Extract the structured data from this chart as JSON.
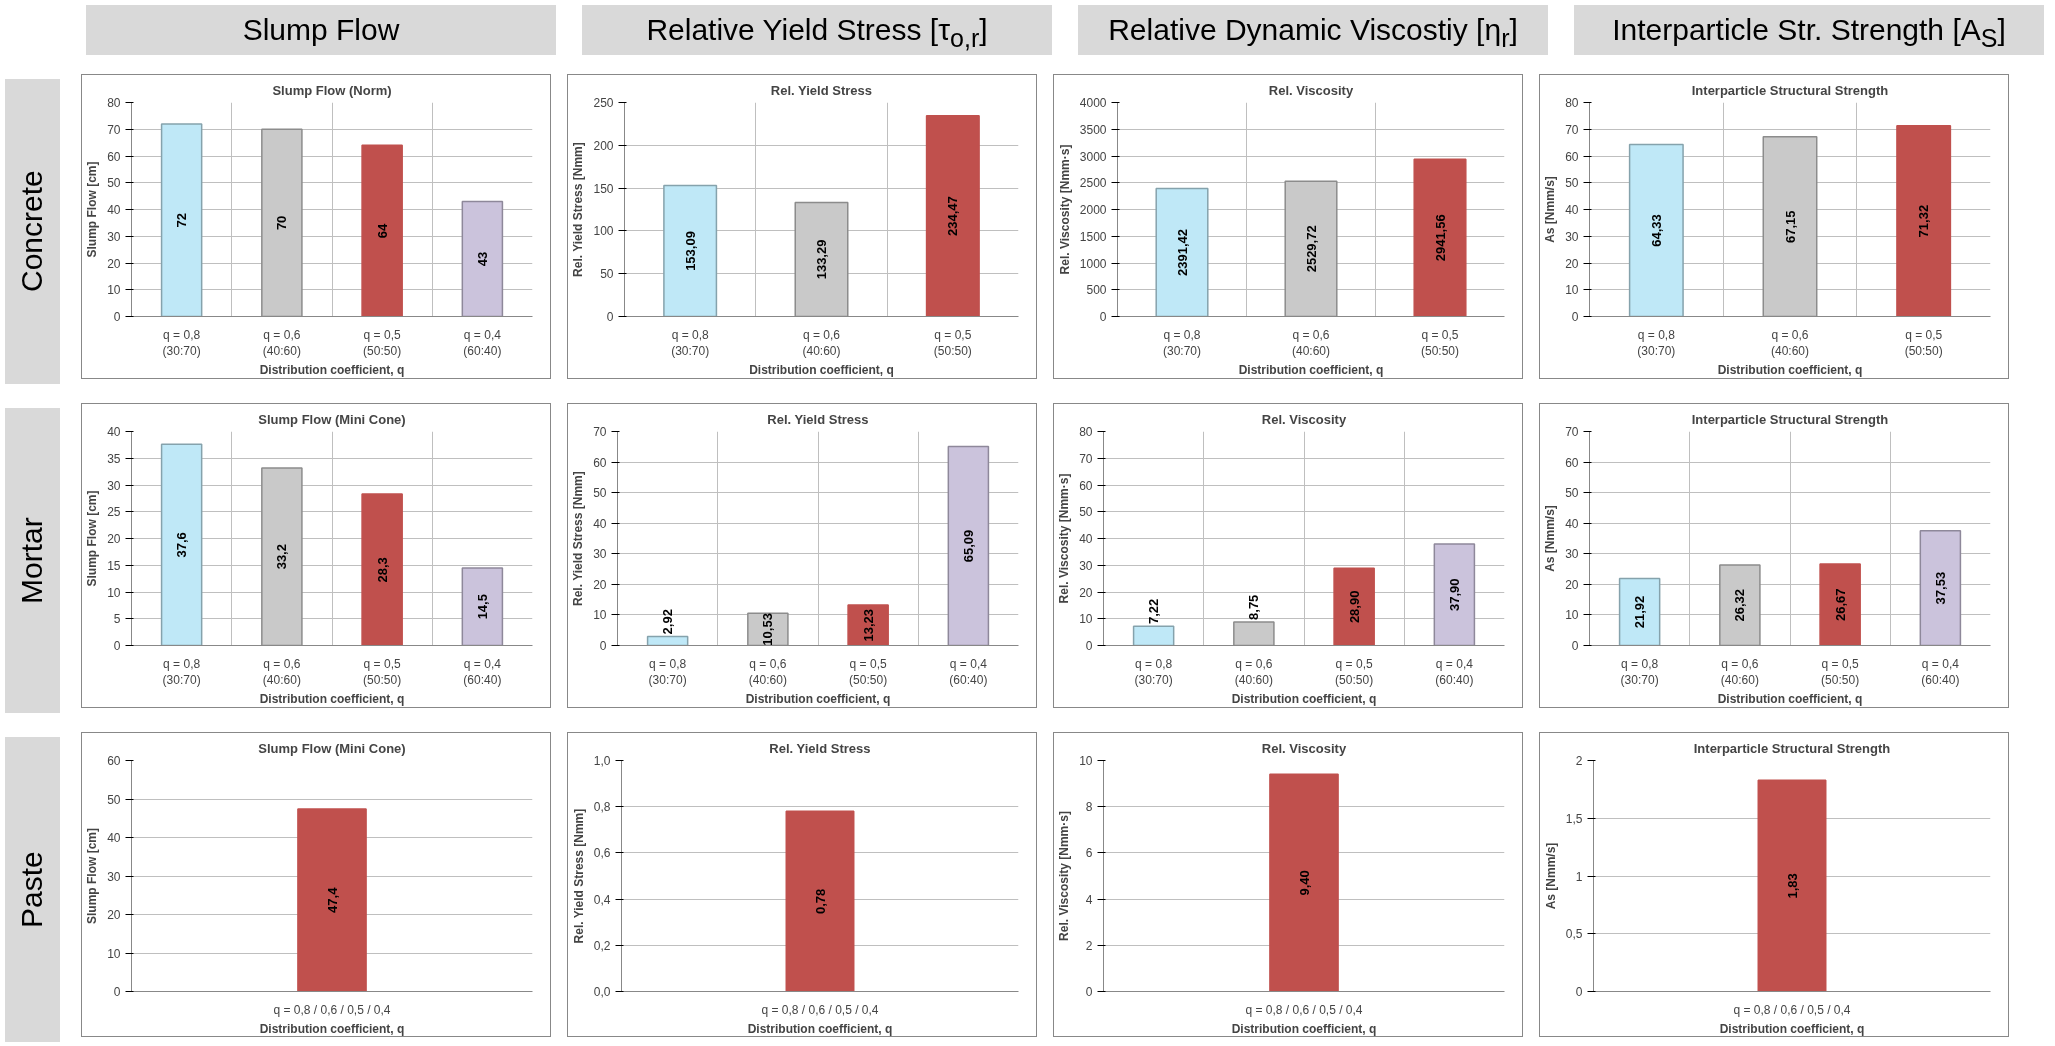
{
  "chart_data": [
    {
      "type": "other",
      "title": "Slump Flow"
    },
    {
      "type": "other",
      "title": "Relative Yield Stress [τ$_{o,r}$]"
    },
    {
      "type": "other",
      "title": "Relative Dynamic Viscostiy [η$_{r}$]"
    },
    {
      "type": "other",
      "title": "Interparticle Str. Strength [A$_{S}$]"
    },
    {
      "type": "other",
      "title": "Concrete"
    },
    {
      "type": "bar",
      "title": "Slump Flow (Norm)",
      "xlabel": "Distribution coefficient, q",
      "ylabel": "Slump Flow [cm]",
      "categories": [
        "q = 0,8\n(30:70)",
        "q = 0,6\n(40:60)",
        "q = 0,5\n(50:50)",
        "q = 0,4\n(60:40)"
      ],
      "values": [
        72,
        70,
        64,
        43
      ],
      "value_labels": [
        "72",
        "70",
        "64",
        "43"
      ],
      "colors": [
        "#bfe8f7",
        "#c9c9c9",
        "#c0504d",
        "#cbc3dc"
      ],
      "ylim": [
        0,
        80
      ],
      "yticks": [
        0,
        10,
        20,
        30,
        40,
        50,
        60,
        70,
        80
      ],
      "grid": true
    },
    {
      "type": "bar",
      "title": "Rel. Yield Stress",
      "xlabel": "Distribution coefficient, q",
      "ylabel": "Rel. Yield Stress [Nmm]",
      "categories": [
        "q = 0,8\n(30:70)",
        "q = 0,6\n(40:60)",
        "q = 0,5\n(50:50)"
      ],
      "values": [
        153.09,
        133.29,
        234.47
      ],
      "value_labels": [
        "153,09",
        "133,29",
        "234,47"
      ],
      "colors": [
        "#bfe8f7",
        "#c9c9c9",
        "#c0504d"
      ],
      "ylim": [
        0,
        250
      ],
      "yticks": [
        0,
        50,
        100,
        150,
        200,
        250
      ],
      "grid": true
    },
    {
      "type": "bar",
      "title": "Rel. Viscosity",
      "xlabel": "Distribution coefficient, q",
      "ylabel": "Rel. Viscosity [Nmm·s]",
      "categories": [
        "q = 0,8\n(30:70)",
        "q = 0,6\n(40:60)",
        "q = 0,5\n(50:50)"
      ],
      "values": [
        2391.42,
        2529.72,
        2941.56
      ],
      "value_labels": [
        "2391,42",
        "2529,72",
        "2941,56"
      ],
      "colors": [
        "#bfe8f7",
        "#c9c9c9",
        "#c0504d"
      ],
      "ylim": [
        0,
        4000
      ],
      "yticks": [
        0,
        500,
        1000,
        1500,
        2000,
        2500,
        3000,
        3500,
        4000
      ],
      "grid": true
    },
    {
      "type": "bar",
      "title": "Interparticle Structural Strength",
      "xlabel": "Distribution coefficient, q",
      "ylabel": "As [Nmm/s]",
      "categories": [
        "q = 0,8\n(30:70)",
        "q = 0,6\n(40:60)",
        "q = 0,5\n(50:50)"
      ],
      "values": [
        64.33,
        67.15,
        71.32
      ],
      "value_labels": [
        "64,33",
        "67,15",
        "71,32"
      ],
      "colors": [
        "#bfe8f7",
        "#c9c9c9",
        "#c0504d"
      ],
      "ylim": [
        0,
        80
      ],
      "yticks": [
        0,
        10,
        20,
        30,
        40,
        50,
        60,
        70,
        80
      ],
      "grid": true
    },
    {
      "type": "other",
      "title": "Mortar"
    },
    {
      "type": "bar",
      "title": "Slump Flow (Mini Cone)",
      "xlabel": "Distribution coefficient, q",
      "ylabel": "Slump Flow [cm]",
      "categories": [
        "q = 0,8\n(30:70)",
        "q = 0,6\n(40:60)",
        "q = 0,5\n(50:50)",
        "q = 0,4\n(60:40)"
      ],
      "values": [
        37.6,
        33.2,
        28.3,
        14.5
      ],
      "value_labels": [
        "37,6",
        "33,2",
        "28,3",
        "14,5"
      ],
      "colors": [
        "#bfe8f7",
        "#c9c9c9",
        "#c0504d",
        "#cbc3dc"
      ],
      "ylim": [
        0,
        40
      ],
      "yticks": [
        0,
        5,
        10,
        15,
        20,
        25,
        30,
        35,
        40
      ],
      "grid": true
    },
    {
      "type": "bar",
      "title": "Rel. Yield Stress",
      "xlabel": "Distribution coefficient, q",
      "ylabel": "Rel. Yield Stress [Nmm]",
      "categories": [
        "q = 0,8\n(30:70)",
        "q = 0,6\n(40:60)",
        "q = 0,5\n(50:50)",
        "q = 0,4\n(60:40)"
      ],
      "values": [
        2.92,
        10.53,
        13.23,
        65.09
      ],
      "value_labels": [
        "2,92",
        "10,53",
        "13,23",
        "65,09"
      ],
      "colors": [
        "#bfe8f7",
        "#c9c9c9",
        "#c0504d",
        "#cbc3dc"
      ],
      "ylim": [
        0,
        70
      ],
      "yticks": [
        0,
        10,
        20,
        30,
        40,
        50,
        60,
        70
      ],
      "grid": true
    },
    {
      "type": "bar",
      "title": "Rel. Viscosity",
      "xlabel": "Distribution coefficient, q",
      "ylabel": "Rel. Viscosity [Nmm·s]",
      "categories": [
        "q = 0,8\n(30:70)",
        "q = 0,6\n(40:60)",
        "q = 0,5\n(50:50)",
        "q = 0,4\n(60:40)"
      ],
      "values": [
        7.22,
        8.75,
        28.9,
        37.9
      ],
      "value_labels": [
        "7,22",
        "8,75",
        "28,90",
        "37,90"
      ],
      "colors": [
        "#bfe8f7",
        "#c9c9c9",
        "#c0504d",
        "#cbc3dc"
      ],
      "ylim": [
        0,
        80
      ],
      "yticks": [
        0,
        10,
        20,
        30,
        40,
        50,
        60,
        70,
        80
      ],
      "grid": true
    },
    {
      "type": "bar",
      "title": "Interparticle Structural Strength",
      "xlabel": "Distribution coefficient, q",
      "ylabel": "As [Nmm/s]",
      "categories": [
        "q = 0,8\n(30:70)",
        "q = 0,6\n(40:60)",
        "q = 0,5\n(50:50)",
        "q = 0,4\n(60:40)"
      ],
      "values": [
        21.92,
        26.32,
        26.67,
        37.53
      ],
      "value_labels": [
        "21,92",
        "26,32",
        "26,67",
        "37,53"
      ],
      "colors": [
        "#bfe8f7",
        "#c9c9c9",
        "#c0504d",
        "#cbc3dc"
      ],
      "ylim": [
        0,
        70
      ],
      "yticks": [
        0,
        10,
        20,
        30,
        40,
        50,
        60,
        70
      ],
      "grid": true
    },
    {
      "type": "other",
      "title": "Paste"
    },
    {
      "type": "bar",
      "title": "Slump Flow (Mini Cone)",
      "xlabel": "Distribution coefficient, q",
      "ylabel": "Slump Flow [cm]",
      "categories": [
        "q = 0,8 / 0,6 / 0,5 / 0,4"
      ],
      "values": [
        47.4
      ],
      "value_labels": [
        "47,4"
      ],
      "colors": [
        "#c0504d"
      ],
      "ylim": [
        0,
        60
      ],
      "yticks": [
        0,
        10,
        20,
        30,
        40,
        50,
        60
      ],
      "grid": "y"
    },
    {
      "type": "bar",
      "title": "Rel. Yield Stress",
      "xlabel": "Distribution coefficient, q",
      "ylabel": "Rel. Yield Stress [Nmm]",
      "categories": [
        "q = 0,8 / 0,6 / 0,5 / 0,4"
      ],
      "values": [
        0.78
      ],
      "value_labels": [
        "0,78"
      ],
      "colors": [
        "#c0504d"
      ],
      "ylim": [
        0,
        1
      ],
      "yticks": [
        {
          "value": 0,
          "label": "0,0"
        },
        {
          "value": 0.2,
          "label": "0,2"
        },
        {
          "value": 0.4,
          "label": "0,4"
        },
        {
          "value": 0.6,
          "label": "0,6"
        },
        {
          "value": 0.8,
          "label": "0,8"
        },
        {
          "value": 1,
          "label": "1,0"
        }
      ],
      "grid": "y"
    },
    {
      "type": "bar",
      "title": "Rel. Viscosity",
      "xlabel": "Distribution coefficient, q",
      "ylabel": "Rel. Viscosity [Nmm·s]",
      "categories": [
        "q = 0,8 / 0,6 / 0,5 / 0,4"
      ],
      "values": [
        9.4
      ],
      "value_labels": [
        "9,40"
      ],
      "colors": [
        "#c0504d"
      ],
      "ylim": [
        0,
        10
      ],
      "yticks": [
        0,
        2,
        4,
        6,
        8,
        10
      ],
      "grid": "y"
    },
    {
      "type": "bar",
      "title": "Interparticle Structural Strength",
      "xlabel": "Distribution coefficient, q",
      "ylabel": "As [Nmm/s]",
      "categories": [
        "q = 0,8 / 0,6 / 0,5 / 0,4"
      ],
      "values": [
        1.83
      ],
      "value_labels": [
        "1,83"
      ],
      "colors": [
        "#c0504d"
      ],
      "ylim": [
        0,
        2
      ],
      "yticks": [
        0,
        {
          "value": 0.5,
          "label": "0,5"
        },
        1,
        {
          "value": 1.5,
          "label": "1,5"
        },
        2
      ],
      "grid": "y"
    }
  ]
}
